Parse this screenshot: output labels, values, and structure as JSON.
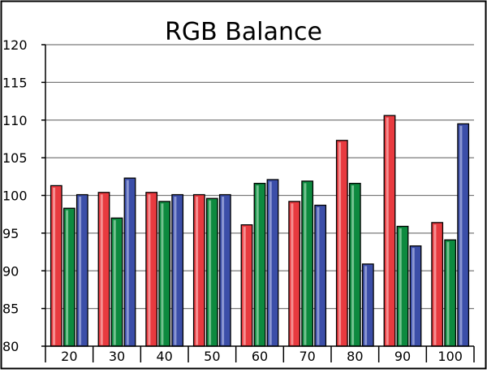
{
  "chart_data": {
    "type": "bar",
    "title": "RGB Balance",
    "xlabel": "",
    "ylabel": "",
    "categories": [
      "20",
      "30",
      "40",
      "50",
      "60",
      "70",
      "80",
      "90",
      "100"
    ],
    "series": [
      {
        "values": [
          101.3,
          100.4,
          100.4,
          100.1,
          96.1,
          99.2,
          107.3,
          110.6,
          96.4
        ]
      },
      {
        "values": [
          98.3,
          97.0,
          99.2,
          99.6,
          101.6,
          101.9,
          101.6,
          95.9,
          94.1
        ]
      },
      {
        "values": [
          100.1,
          102.3,
          100.1,
          100.1,
          102.1,
          98.7,
          90.9,
          93.3,
          109.5
        ]
      }
    ],
    "ylim": [
      80,
      120
    ],
    "yticks": [
      "80",
      "85",
      "90",
      "95",
      "100",
      "105",
      "110",
      "115",
      "120"
    ],
    "grid": true,
    "legend": "none"
  },
  "colors": {
    "series": [
      "#e83a3f",
      "#0d8a3f",
      "#3b4ea8"
    ],
    "highlight": [
      "#ffd6d6",
      "#c8f0d4",
      "#cdd4f4"
    ],
    "grid": "#7a7a7a",
    "axis": "#000000",
    "background": "#ffffff"
  }
}
